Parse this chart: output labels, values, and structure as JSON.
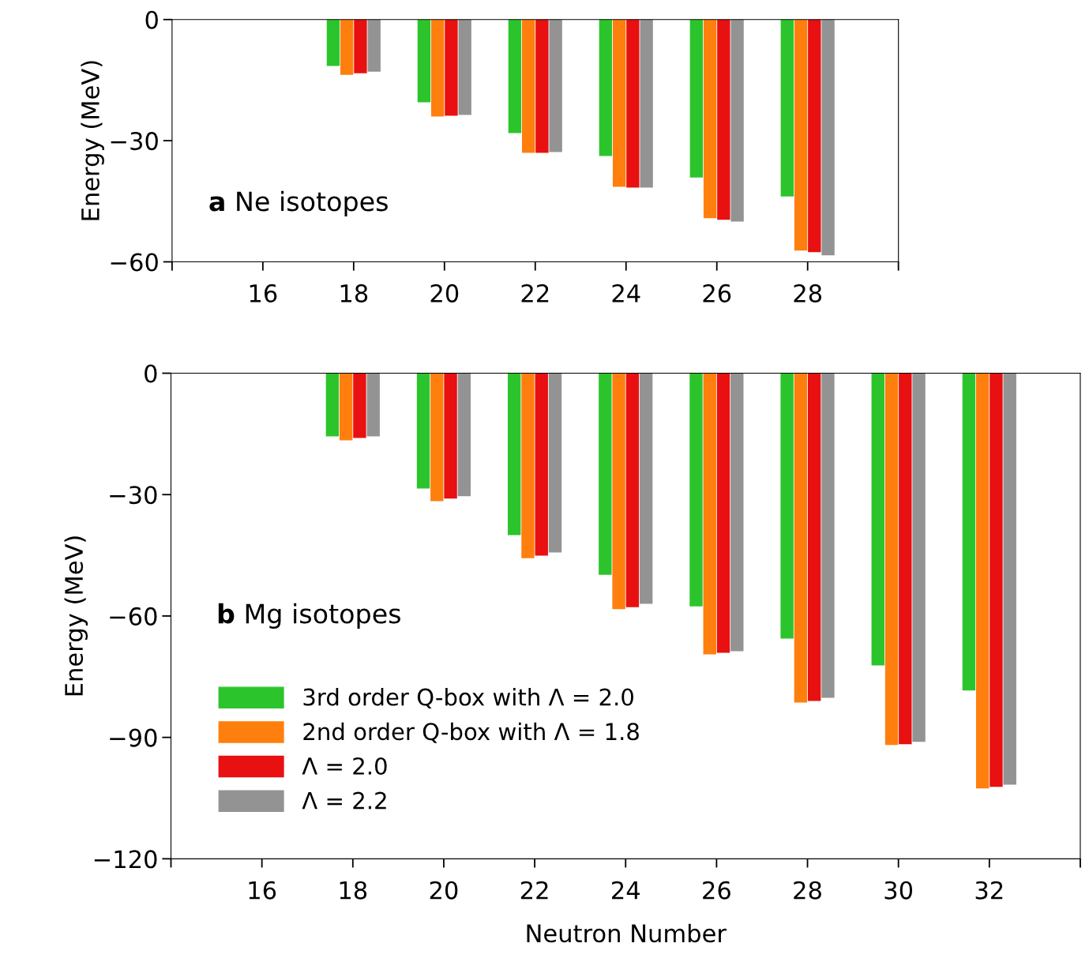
{
  "chart_data": [
    {
      "type": "bar",
      "annotations": [
        "a",
        "Ne isotopes"
      ],
      "ylabel": "Energy (MeV)",
      "x": [
        18,
        20,
        22,
        24,
        26,
        28
      ],
      "series": [
        {
          "color": "#2cc42c",
          "values": [
            -11.5,
            -20.5,
            -28.1,
            -33.8,
            -39.1,
            -43.8
          ]
        },
        {
          "color": "#ff7f0e",
          "values": [
            -13.7,
            -24.0,
            -33.0,
            -41.4,
            -49.2,
            -57.2
          ]
        },
        {
          "color": "#e81010",
          "values": [
            -13.3,
            -23.8,
            -33.0,
            -41.6,
            -49.6,
            -57.6
          ]
        },
        {
          "color": "#939393",
          "values": [
            -12.9,
            -23.6,
            -32.8,
            -41.6,
            -50.0,
            -58.4
          ]
        }
      ],
      "xlim": [
        14,
        30
      ],
      "xticks": [
        {
          "value": 14,
          "label": null
        },
        16,
        18,
        20,
        22,
        24,
        26,
        28,
        {
          "value": 30,
          "label": null
        }
      ],
      "ylim": [
        -60,
        0
      ],
      "yticks": [
        {
          "value": -60,
          "label": "−60"
        },
        {
          "value": -30,
          "label": "−30"
        },
        0
      ],
      "grid": false,
      "legend": false
    },
    {
      "type": "bar",
      "annotations": [
        "b",
        "Mg isotopes"
      ],
      "ylabel": "Energy (MeV)",
      "xlabel": "Neutron Number",
      "x": [
        18,
        20,
        22,
        24,
        26,
        28,
        30,
        32
      ],
      "series": [
        {
          "name": "3rd order Q-box with Λ = 2.0",
          "color": "#2cc42c",
          "values": [
            -15.6,
            -28.5,
            -40.0,
            -49.8,
            -57.6,
            -65.6,
            -72.2,
            -78.4
          ]
        },
        {
          "name": "2nd order Q-box with Λ = 1.8",
          "color": "#ff7f0e",
          "values": [
            -16.6,
            -31.6,
            -45.7,
            -58.3,
            -69.5,
            -81.4,
            -91.9,
            -102.6
          ]
        },
        {
          "name": "Λ = 2.0",
          "color": "#e81010",
          "values": [
            -16.0,
            -31.0,
            -45.1,
            -57.8,
            -69.1,
            -81.0,
            -91.7,
            -102.2
          ]
        },
        {
          "name": "Λ = 2.2",
          "color": "#939393",
          "values": [
            -15.6,
            -30.4,
            -44.3,
            -57.0,
            -68.7,
            -80.2,
            -91.1,
            -101.7
          ]
        }
      ],
      "xlim": [
        14,
        34
      ],
      "xticks": [
        {
          "value": 14,
          "label": null
        },
        16,
        18,
        20,
        22,
        24,
        26,
        28,
        30,
        32,
        {
          "value": 34,
          "label": null
        }
      ],
      "ylim": [
        -120,
        0
      ],
      "yticks": [
        {
          "value": -120,
          "label": "−120"
        },
        {
          "value": -90,
          "label": "−90"
        },
        {
          "value": -60,
          "label": "−60"
        },
        {
          "value": -30,
          "label": "−30"
        },
        0
      ],
      "grid": false,
      "legend": "bottom left"
    }
  ]
}
